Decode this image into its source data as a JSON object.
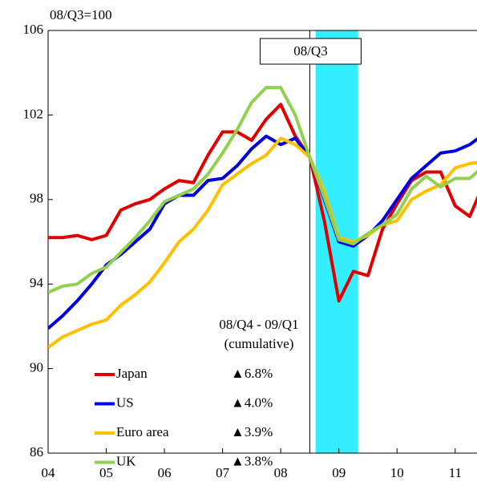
{
  "chart_data": {
    "type": "line",
    "y_label": "08/Q3=100",
    "annotation": "08/Q3",
    "annotation_x": 8.5,
    "shade": [
      8.6,
      9.33
    ],
    "shade_color": "#33eeff",
    "legend_header": [
      "08/Q4 - 09/Q1",
      "(cumulative)"
    ],
    "xlim": [
      4,
      11.375
    ],
    "xticks": [
      {
        "value": 4,
        "label": "04"
      },
      {
        "value": 5,
        "label": "05"
      },
      {
        "value": 6,
        "label": "06"
      },
      {
        "value": 7,
        "label": "07"
      },
      {
        "value": 8,
        "label": "08"
      },
      {
        "value": 9,
        "label": "09"
      },
      {
        "value": 10,
        "label": "10"
      },
      {
        "value": 11,
        "label": "11"
      }
    ],
    "ylim": [
      86,
      106
    ],
    "yticks": [
      86,
      90,
      94,
      98,
      102,
      106
    ],
    "x": [
      4,
      4.25,
      4.5,
      4.75,
      5,
      5.25,
      5.5,
      5.75,
      6,
      6.25,
      6.5,
      6.75,
      7,
      7.25,
      7.5,
      7.75,
      8,
      8.25,
      8.5,
      8.75,
      9,
      9.25,
      9.5,
      9.75,
      10,
      10.25,
      10.5,
      10.75,
      11,
      11.25,
      11.5
    ],
    "series": [
      {
        "name": "Japan",
        "color": "#e00000",
        "legend_value": "▲6.8%",
        "values": [
          96.2,
          96.2,
          96.3,
          96.1,
          96.3,
          97.5,
          97.8,
          98.0,
          98.5,
          98.9,
          98.8,
          100.1,
          101.2,
          101.2,
          100.8,
          101.8,
          102.5,
          101.0,
          100.0,
          97.0,
          93.2,
          94.6,
          94.4,
          96.6,
          97.8,
          98.9,
          99.3,
          99.3,
          97.7,
          97.2,
          98.8
        ]
      },
      {
        "name": "US",
        "color": "#0000e0",
        "legend_value": "▲4.0%",
        "values": [
          91.9,
          92.5,
          93.2,
          94.0,
          94.9,
          95.4,
          96.0,
          96.6,
          97.8,
          98.2,
          98.2,
          98.9,
          99.0,
          99.6,
          100.4,
          101.0,
          100.6,
          100.9,
          100.0,
          98.0,
          96.0,
          95.8,
          96.3,
          97.0,
          98.0,
          99.0,
          99.6,
          100.2,
          100.3,
          100.6,
          101.1
        ]
      },
      {
        "name": "Euro area",
        "color": "#ffc000",
        "legend_value": "▲3.9%",
        "values": [
          91.0,
          91.5,
          91.8,
          92.1,
          92.3,
          93.0,
          93.5,
          94.1,
          95.0,
          96.0,
          96.6,
          97.5,
          98.7,
          99.2,
          99.7,
          100.1,
          100.9,
          100.6,
          100.0,
          98.4,
          96.2,
          96.0,
          96.3,
          96.8,
          97.0,
          98.0,
          98.4,
          98.7,
          99.5,
          99.7,
          99.8
        ]
      },
      {
        "name": "UK",
        "color": "#92d050",
        "legend_value": "▲3.8%",
        "values": [
          93.6,
          93.9,
          94.0,
          94.5,
          94.8,
          95.5,
          96.2,
          97.0,
          97.9,
          98.2,
          98.5,
          99.2,
          100.2,
          101.3,
          102.6,
          103.3,
          103.3,
          102.0,
          100.0,
          98.1,
          96.1,
          95.9,
          96.4,
          96.8,
          97.3,
          98.5,
          99.1,
          98.6,
          99.0,
          99.0,
          99.6
        ]
      }
    ]
  }
}
